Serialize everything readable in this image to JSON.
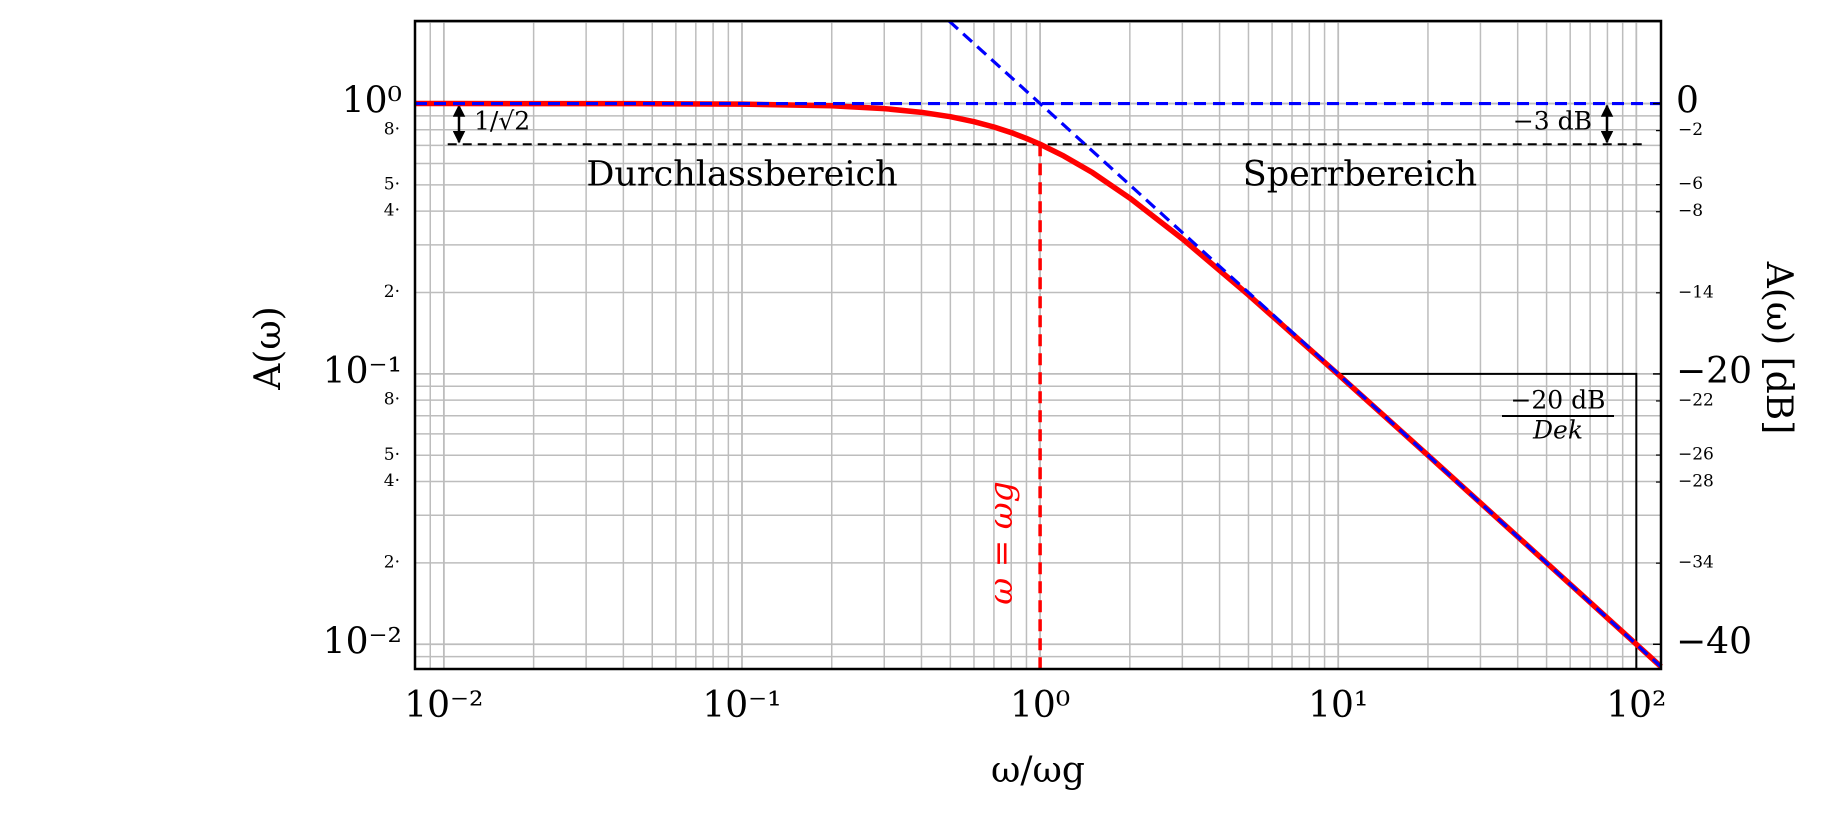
{
  "chart_data": {
    "type": "line",
    "xlabel": "ω/ωg",
    "ylabel": "A(ω)",
    "y2label": "A(ω) [dB]",
    "xscale": "log",
    "yscale": "log",
    "grid": true,
    "xlim": [
      0.008,
      121
    ],
    "ylim": [
      0.0081,
      2.02
    ],
    "y2lim": [
      -41.83,
      6.11
    ],
    "xticks": [
      {
        "value": 0.01,
        "label": "10⁻²"
      },
      {
        "value": 0.1,
        "label": "10⁻¹"
      },
      {
        "value": 1,
        "label": "10⁰"
      },
      {
        "value": 10,
        "label": "10¹"
      },
      {
        "value": 100,
        "label": "10²"
      }
    ],
    "xminorticks": [
      0.009,
      0.02,
      0.03,
      0.04,
      0.05,
      0.06,
      0.07,
      0.08,
      0.09,
      0.2,
      0.3,
      0.4,
      0.5,
      0.6,
      0.7,
      0.8,
      0.9,
      2,
      3,
      4,
      5,
      6,
      7,
      8,
      9,
      20,
      30,
      40,
      50,
      60,
      70,
      80,
      90
    ],
    "yticks": [
      {
        "value": 1,
        "label": "10⁰"
      },
      {
        "value": 0.1,
        "label": "10⁻¹"
      },
      {
        "value": 0.01,
        "label": "10⁻²"
      }
    ],
    "yminorticks": [
      {
        "value": 0.8,
        "label": "8·"
      },
      {
        "value": 0.5,
        "label": "5·"
      },
      {
        "value": 0.4,
        "label": "4·"
      },
      {
        "value": 0.2,
        "label": "2·"
      },
      {
        "value": 0.08,
        "label": "8·"
      },
      {
        "value": 0.05,
        "label": "5·"
      },
      {
        "value": 0.04,
        "label": "4·"
      },
      {
        "value": 0.02,
        "label": "2·"
      }
    ],
    "ygridextra": [
      2,
      0.9,
      0.7,
      0.6,
      0.3,
      0.09,
      0.07,
      0.06,
      0.03,
      0.009
    ],
    "y2ticks": [
      0,
      {
        "value": -20,
        "label": "−20"
      },
      {
        "value": -40,
        "label": "−40"
      }
    ],
    "y2minorticks": [
      {
        "value": -2,
        "label": "−2"
      },
      {
        "value": -6,
        "label": "−6"
      },
      {
        "value": -8,
        "label": "−8"
      },
      {
        "value": -14,
        "label": "−14"
      },
      {
        "value": -22,
        "label": "−22"
      },
      {
        "value": -26,
        "label": "−26"
      },
      {
        "value": -28,
        "label": "−28"
      },
      {
        "value": -34,
        "label": "−34"
      }
    ],
    "series": [
      {
        "color": "#ff0000",
        "style": "solid",
        "x": [
          0.008,
          0.01,
          0.02,
          0.05,
          0.1,
          0.2,
          0.3,
          0.4,
          0.5,
          0.6,
          0.7,
          0.8,
          0.9,
          1,
          1.2,
          1.5,
          2,
          3,
          5,
          7,
          10,
          20,
          50,
          100,
          121
        ],
        "values": [
          1.0,
          1.0,
          0.9998,
          0.9988,
          0.995,
          0.981,
          0.958,
          0.928,
          0.894,
          0.857,
          0.819,
          0.781,
          0.743,
          0.707,
          0.64,
          0.555,
          0.447,
          0.316,
          0.196,
          0.141,
          0.0995,
          0.05,
          0.02,
          0.01,
          0.00826
        ]
      },
      {
        "color": "#0000ff",
        "style": "dashed",
        "x": [
          0.008,
          121
        ],
        "values": [
          1,
          1
        ]
      },
      {
        "color": "#0000ff",
        "style": "dashed",
        "x": [
          0.495,
          121
        ],
        "values": [
          2.02,
          0.00826
        ]
      }
    ],
    "reference_lines": [
      {
        "color": "#000000",
        "y": 0.707,
        "x": [
          0.0103,
          107
        ]
      },
      {
        "color": "#ff0000",
        "x": 1,
        "y": 0.707
      }
    ],
    "slope_triangle": {
      "x": [
        10,
        100
      ],
      "y": 0.1
    },
    "annotations": {
      "passband": "Durchlassbereich",
      "stopband": "Sperrbereich",
      "ratio": "1/√2",
      "db3": "−3 dB",
      "cutoff": "ω = ωg",
      "slope_num": "−20 dB",
      "slope_den": "Dek"
    }
  }
}
